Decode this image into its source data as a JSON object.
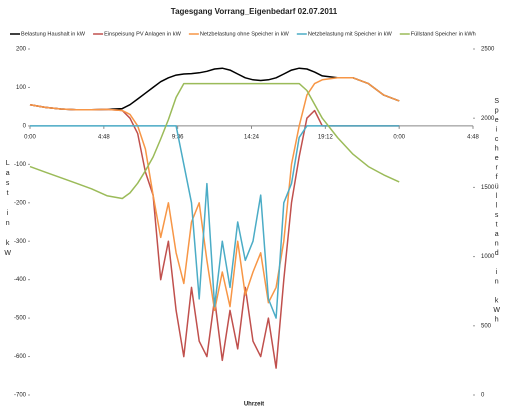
{
  "chart_data": {
    "type": "line",
    "title": "Tagesgang Vorrang_Eigenbedarf 02.07.2011",
    "xlabel": "Uhrzeit",
    "ylabel": "Last in kW",
    "y2label": "Speicherfüllstand in kWh",
    "grid": false,
    "x": [
      0,
      1,
      2,
      3,
      4,
      5,
      6,
      6.5,
      7,
      7.5,
      8,
      8.5,
      9,
      9.5,
      10,
      10.5,
      11,
      11.5,
      12,
      12.5,
      13,
      13.5,
      14,
      14.5,
      15,
      15.5,
      16,
      16.5,
      17,
      17.5,
      18,
      18.5,
      19,
      20,
      21,
      22,
      23,
      24
    ],
    "xlim": [
      0,
      28.8
    ],
    "xticks": [
      {
        "value": 0,
        "label": "0:00"
      },
      {
        "value": 4.8,
        "label": "4:48"
      },
      {
        "value": 9.6,
        "label": "9:36"
      },
      {
        "value": 14.4,
        "label": "14:24"
      },
      {
        "value": 19.2,
        "label": "19:12"
      },
      {
        "value": 24,
        "label": "0:00"
      },
      {
        "value": 28.8,
        "label": "4:48"
      }
    ],
    "ylim": [
      -700,
      200
    ],
    "yticks": [
      -700,
      -600,
      -500,
      -400,
      -300,
      -200,
      -100,
      0,
      100,
      200
    ],
    "y2lim": [
      0,
      2500
    ],
    "y2ticks": [
      0,
      500,
      1000,
      1500,
      2000,
      2500
    ],
    "series": [
      {
        "name": "Belastung Haushalt in kW",
        "color": "#000000",
        "values": [
          55,
          48,
          44,
          42,
          42,
          43,
          45,
          55,
          70,
          85,
          100,
          115,
          125,
          132,
          135,
          136,
          138,
          142,
          148,
          150,
          145,
          135,
          125,
          120,
          118,
          120,
          125,
          135,
          145,
          150,
          148,
          140,
          130,
          125,
          125,
          110,
          80,
          65
        ]
      },
      {
        "name": "Einspeisung PV Anlagen in kW",
        "color": "#c0504d",
        "values": [
          55,
          48,
          44,
          42,
          42,
          43,
          40,
          20,
          -20,
          -120,
          -180,
          -400,
          -300,
          -480,
          -600,
          -420,
          -560,
          -600,
          -450,
          -610,
          -480,
          -580,
          -420,
          -560,
          -600,
          -500,
          -630,
          -400,
          -200,
          -80,
          20,
          40,
          0,
          0,
          0,
          0,
          0,
          0
        ]
      },
      {
        "name": "Netzbelastung ohne Speicher in kW",
        "color": "#f79646",
        "values": [
          55,
          48,
          44,
          42,
          42,
          43,
          40,
          30,
          0,
          -60,
          -180,
          -290,
          -200,
          -330,
          -410,
          -250,
          -200,
          -350,
          -480,
          -380,
          -470,
          -300,
          -440,
          -380,
          -330,
          -460,
          -420,
          -300,
          -100,
          0,
          80,
          110,
          120,
          125,
          125,
          110,
          80,
          65
        ]
      },
      {
        "name": "Netzbelastung mit Speicher in kW",
        "color": "#4bacc6",
        "values": [
          0,
          0,
          0,
          0,
          0,
          0,
          0,
          0,
          0,
          0,
          0,
          0,
          0,
          0,
          -100,
          -200,
          -450,
          -150,
          -470,
          -300,
          -420,
          -250,
          -350,
          -300,
          -180,
          -450,
          -500,
          -200,
          -150,
          -30,
          0,
          0,
          0,
          0,
          0,
          0,
          0,
          0
        ]
      },
      {
        "name": "Füllstand Speicher in kWh",
        "color": "#9bbb59",
        "axis": "y2",
        "values": [
          1650,
          1610,
          1570,
          1530,
          1490,
          1440,
          1420,
          1460,
          1530,
          1620,
          1720,
          1850,
          1990,
          2150,
          2250,
          2250,
          2250,
          2250,
          2250,
          2250,
          2250,
          2250,
          2250,
          2250,
          2250,
          2250,
          2250,
          2250,
          2250,
          2250,
          2200,
          2100,
          2000,
          1860,
          1740,
          1650,
          1590,
          1540
        ]
      }
    ]
  }
}
